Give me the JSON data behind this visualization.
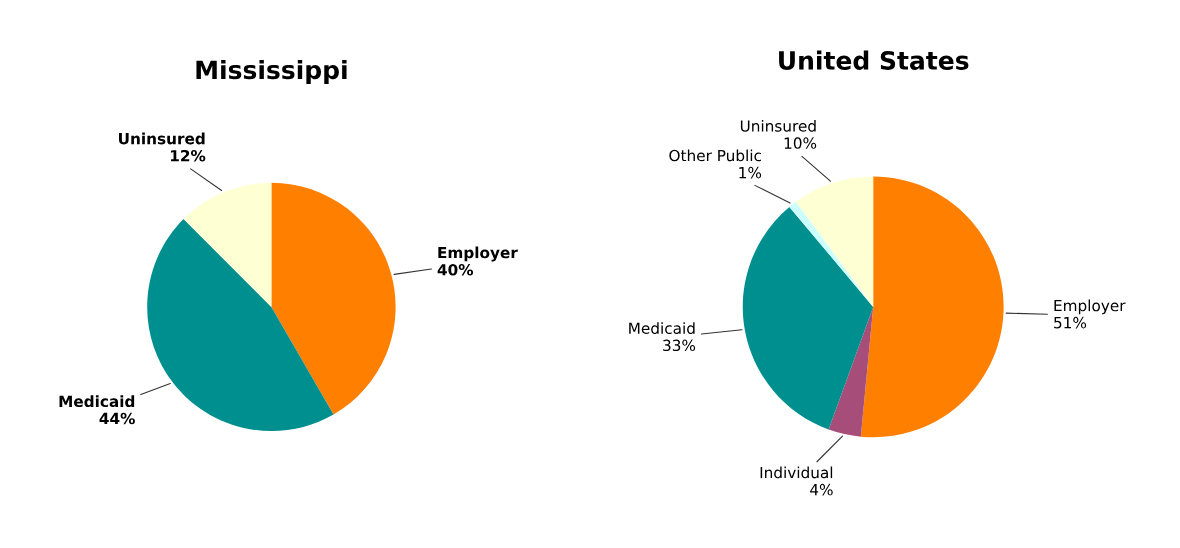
{
  "chart_data": [
    {
      "type": "pie",
      "title": "Mississippi",
      "categories": [
        "Employer",
        "Medicaid",
        "Uninsured"
      ],
      "values": [
        40,
        44,
        12
      ],
      "value_labels": [
        "40%",
        "44%",
        "12%"
      ],
      "colors": [
        "#ff7f00",
        "#008f8f",
        "#ffffd4"
      ],
      "legend": false
    },
    {
      "type": "pie",
      "title": "United States",
      "categories": [
        "Employer",
        "Individual",
        "Medicaid",
        "Other Public",
        "Uninsured"
      ],
      "values": [
        51,
        4,
        33,
        1,
        10
      ],
      "value_labels": [
        "51%",
        "4%",
        "33%",
        "1%",
        "10%"
      ],
      "colors": [
        "#ff7f00",
        "#a64d79",
        "#008f8f",
        "#ccffff",
        "#ffffd4"
      ],
      "legend": false
    }
  ]
}
